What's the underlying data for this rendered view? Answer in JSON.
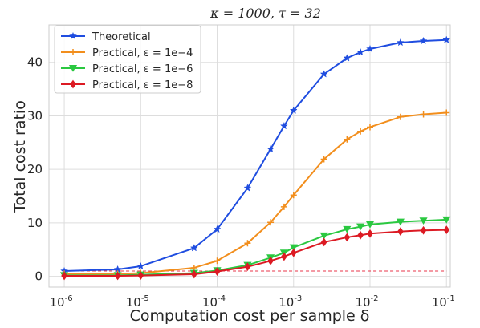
{
  "chart_data": {
    "type": "line",
    "title": "κ = 1000, τ = 32",
    "xlabel": "Computation cost per sample δ",
    "ylabel": "Total cost ratio",
    "xscale": "log",
    "xlim": [
      1e-06,
      0.1
    ],
    "ylim": [
      -2,
      47
    ],
    "xticks": [
      {
        "value": 1e-06,
        "base": "10",
        "exp": "-6"
      },
      {
        "value": 1e-05,
        "base": "10",
        "exp": "-5"
      },
      {
        "value": 0.0001,
        "base": "10",
        "exp": "-4"
      },
      {
        "value": 0.001,
        "base": "10",
        "exp": "-3"
      },
      {
        "value": 0.01,
        "base": "10",
        "exp": "-2"
      },
      {
        "value": 0.1,
        "base": "10",
        "exp": "-1"
      }
    ],
    "yticks": [
      0,
      10,
      20,
      30,
      40
    ],
    "grid": true,
    "legend_position": "top-left",
    "x": [
      1e-06,
      5e-06,
      1e-05,
      5e-05,
      0.0001,
      0.00025,
      0.0005,
      0.00075,
      0.001,
      0.0025,
      0.005,
      0.0075,
      0.01,
      0.025,
      0.05,
      0.1
    ],
    "series": [
      {
        "name": "Theoretical",
        "color": "#1f4de0",
        "marker": "star",
        "values": [
          1.0,
          1.3,
          1.9,
          5.3,
          8.8,
          16.5,
          23.8,
          28.1,
          31.0,
          37.8,
          40.8,
          41.9,
          42.5,
          43.7,
          44.0,
          44.2
        ]
      },
      {
        "name": "Practical, ε = 1e−4",
        "color": "#f28e1c",
        "marker": "plus",
        "values": [
          0.5,
          0.5,
          0.6,
          1.6,
          2.9,
          6.2,
          10.1,
          13.0,
          15.2,
          21.9,
          25.6,
          27.1,
          27.9,
          29.8,
          30.3,
          30.6
        ]
      },
      {
        "name": "Practical, ε = 1e−6",
        "color": "#2ac840",
        "marker": "triangle-down",
        "values": [
          0.2,
          0.2,
          0.3,
          0.6,
          1.1,
          2.1,
          3.5,
          4.4,
          5.4,
          7.6,
          8.8,
          9.3,
          9.7,
          10.2,
          10.4,
          10.6
        ]
      },
      {
        "name": "Practical, ε = 1e−8",
        "color": "#dc1a23",
        "marker": "diamond",
        "values": [
          0.1,
          0.1,
          0.15,
          0.4,
          0.9,
          1.8,
          2.9,
          3.7,
          4.4,
          6.4,
          7.3,
          7.7,
          8.0,
          8.4,
          8.6,
          8.7
        ]
      }
    ],
    "reference_line": {
      "y": 1,
      "color": "#e8344a",
      "style": "dashed"
    }
  }
}
